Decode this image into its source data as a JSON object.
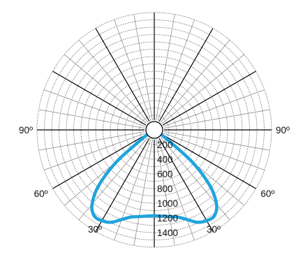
{
  "chart_data": {
    "type": "polar-line",
    "title": "",
    "units": "",
    "angle_tick_labels": [
      {
        "angle": 90,
        "side": "left",
        "label": "90º"
      },
      {
        "angle": 90,
        "side": "right",
        "label": "90º"
      },
      {
        "angle": 60,
        "side": "left",
        "label": "60º"
      },
      {
        "angle": 60,
        "side": "right",
        "label": "60º"
      },
      {
        "angle": 30,
        "side": "left",
        "label": "30º"
      },
      {
        "angle": 30,
        "side": "right",
        "label": "30º"
      }
    ],
    "radial_tick_labels": [
      "200",
      "400",
      "600",
      "800",
      "1000",
      "1200",
      "1400"
    ],
    "radial_ticks": [
      200,
      400,
      600,
      800,
      1000,
      1200,
      1400
    ],
    "rmax": 1600,
    "major_angle_step_deg": 30,
    "minor_angle_step_deg": 10,
    "grid": true,
    "series": [
      {
        "name": "",
        "color": "#1fa4dd",
        "angles_deg": [
          -180,
          -160,
          -150,
          -140,
          -130,
          -120,
          -110,
          -100,
          -90,
          -80,
          -70,
          -60,
          -50,
          -45,
          -40,
          -35,
          -30,
          -25,
          -20,
          -15,
          -10,
          -5,
          0,
          5,
          10,
          15,
          20,
          25,
          30,
          35,
          40,
          45,
          50,
          60,
          70,
          80,
          90,
          100,
          110,
          120,
          130,
          140,
          150,
          160,
          180
        ],
        "values": [
          0,
          0,
          0,
          0,
          0,
          0,
          0,
          0,
          5,
          20,
          45,
          80,
          650,
          1070,
          1320,
          1430,
          1430,
          1390,
          1300,
          1230,
          1200,
          1180,
          1170,
          1180,
          1200,
          1230,
          1300,
          1390,
          1430,
          1430,
          1320,
          1070,
          650,
          80,
          45,
          20,
          5,
          0,
          0,
          0,
          0,
          0,
          0,
          0,
          0
        ]
      }
    ]
  }
}
